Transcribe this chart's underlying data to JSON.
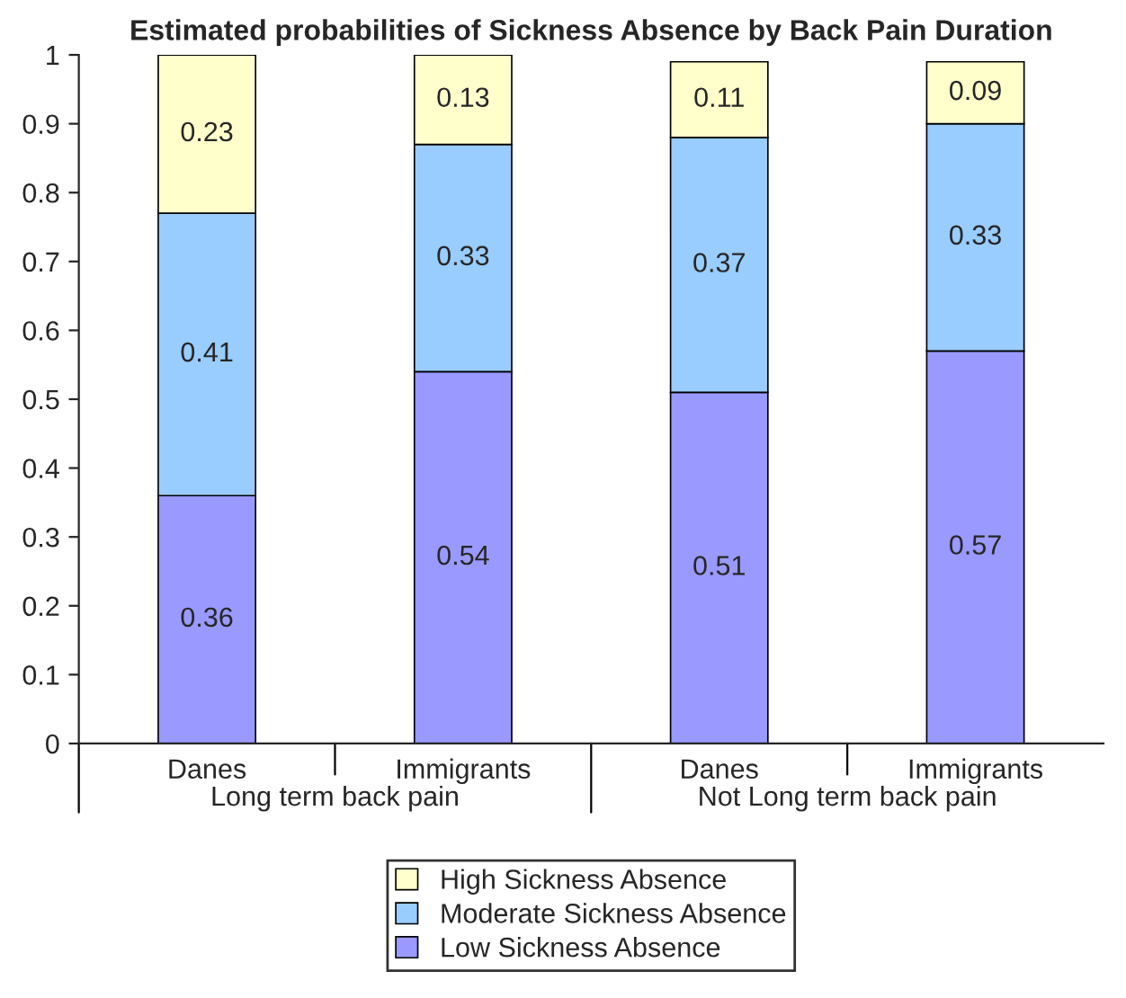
{
  "chart_data": {
    "type": "bar",
    "title": "Estimated probabilities of Sickness Absence by Back Pain Duration",
    "categories": [
      "Danes",
      "Immigrants",
      "Danes",
      "Immigrants"
    ],
    "stacked": true,
    "series": [
      {
        "name": "Low Sickness Absence",
        "color": "#9999ff",
        "values": [
          0.36,
          0.54,
          0.51,
          0.57
        ]
      },
      {
        "name": "Moderate Sickness Absence",
        "color": "#99ccff",
        "values": [
          0.41,
          0.33,
          0.37,
          0.33
        ]
      },
      {
        "name": "High Sickness Absence",
        "color": "#ffffcc",
        "values": [
          0.23,
          0.13,
          0.11,
          0.09
        ]
      }
    ],
    "ylim": [
      0,
      1
    ],
    "yticks": [
      0,
      0.1,
      0.2,
      0.3,
      0.4,
      0.5,
      0.6,
      0.7,
      0.8,
      0.9,
      1
    ],
    "data_labels": true,
    "grid": false,
    "legend": "bottom",
    "annotations": [
      "Long term back pain",
      "Not Long term back pain"
    ]
  }
}
